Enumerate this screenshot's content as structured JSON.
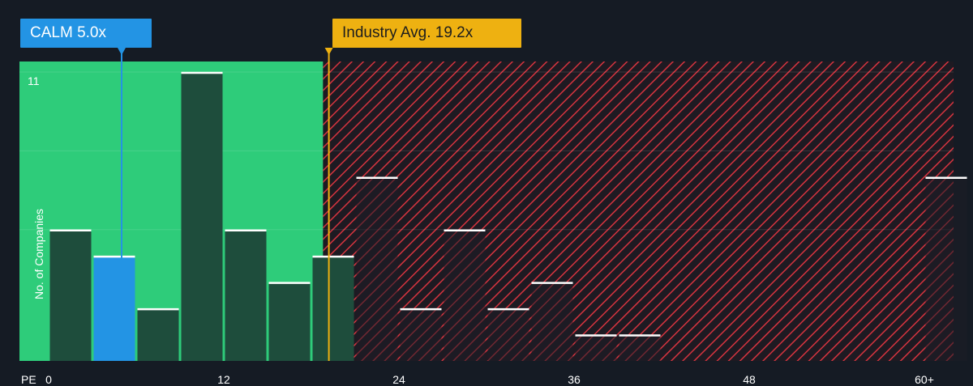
{
  "callouts": {
    "company": "CALM 5.0x",
    "industry": "Industry Avg. 19.2x"
  },
  "colors": {
    "background": "#151b24",
    "undervalued_zone": "#2ecc7a",
    "overvalued_hatch": "#d6343f",
    "company_bar": "#2394e4",
    "bar": "#1e4d3c",
    "bar_top": "#ffffff",
    "industry_line": "#eeb111",
    "company_line": "#2394e4"
  },
  "chart_data": {
    "type": "bar",
    "xlabel": "PE",
    "ylabel": "No. of Companies",
    "x_ticks": [
      "0",
      "12",
      "24",
      "36",
      "48",
      "60+"
    ],
    "x_tick_values": [
      0,
      12,
      24,
      36,
      48,
      60
    ],
    "ymax_label": "11",
    "ylim": [
      0,
      11.4
    ],
    "xlim": [
      -2,
      62
    ],
    "bin_width": 3,
    "bins": [
      {
        "x0": 0,
        "value": 5
      },
      {
        "x0": 3,
        "value": 4,
        "highlight": true
      },
      {
        "x0": 6,
        "value": 2
      },
      {
        "x0": 9,
        "value": 11
      },
      {
        "x0": 12,
        "value": 5
      },
      {
        "x0": 15,
        "value": 3
      },
      {
        "x0": 18,
        "value": 4
      },
      {
        "x0": 21,
        "value": 7
      },
      {
        "x0": 24,
        "value": 2
      },
      {
        "x0": 27,
        "value": 5
      },
      {
        "x0": 30,
        "value": 2
      },
      {
        "x0": 33,
        "value": 3
      },
      {
        "x0": 36,
        "value": 1
      },
      {
        "x0": 39,
        "value": 1
      },
      {
        "x0": 60,
        "value": 7
      }
    ],
    "company_value": 5.0,
    "industry_avg": 19.2,
    "gridlines": [
      5,
      8,
      11
    ],
    "grid": true
  }
}
